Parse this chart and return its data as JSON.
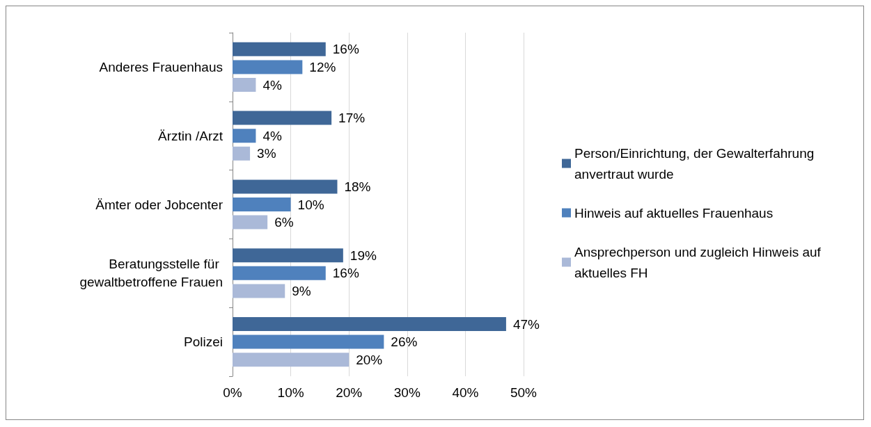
{
  "chart_data": {
    "type": "bar",
    "orientation": "horizontal",
    "categories": [
      "Anderes Frauenhaus",
      "Ärztin /Arzt",
      "Ämter oder Jobcenter",
      "Beratungsstelle für gewaltbetroffene Frauen",
      "Polizei"
    ],
    "series": [
      {
        "name": "Person/Einrichtung, der Gewalterfahrung anvertraut wurde",
        "color": "#3f6797",
        "values": [
          16,
          17,
          18,
          19,
          47
        ],
        "value_labels": [
          "16%",
          "17%",
          "18%",
          "19%",
          "47%"
        ]
      },
      {
        "name": "Hinweis auf aktuelles Frauenhaus",
        "color": "#4f81bd",
        "values": [
          12,
          4,
          10,
          16,
          26
        ],
        "value_labels": [
          "12%",
          "4%",
          "10%",
          "16%",
          "26%"
        ]
      },
      {
        "name": "Ansprechperson und zugleich Hinweis auf aktuelles FH",
        "color": "#aab9d8",
        "values": [
          4,
          3,
          6,
          9,
          20
        ],
        "value_labels": [
          "4%",
          "3%",
          "6%",
          "9%",
          "20%"
        ]
      }
    ],
    "xlim": [
      0,
      50
    ],
    "xticks": [
      {
        "value": 0,
        "label": "0%"
      },
      {
        "value": 10,
        "label": "10%"
      },
      {
        "value": 20,
        "label": "20%"
      },
      {
        "value": 30,
        "label": "30%"
      },
      {
        "value": 40,
        "label": "40%"
      },
      {
        "value": 50,
        "label": "50%"
      }
    ],
    "grid": "x",
    "legend": "right"
  }
}
